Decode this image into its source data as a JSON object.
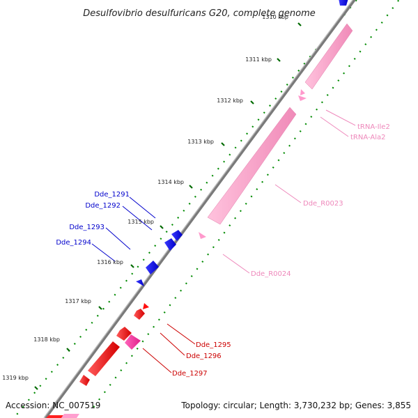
{
  "title": "Desulfovibrio desulfuricans G20, complete genome",
  "footer": {
    "accession": "Accession: NC_007519",
    "topology": "Topology: circular; Length: 3,730,232 bp; Genes: 3,855"
  },
  "colors": {
    "backbone": "#8a8a8a",
    "forward_gene": "#ff0000",
    "forward_gene_alt": "#ff33aa",
    "reverse_gene": "#0000ff",
    "rna": "#ff99cc",
    "tick_major": "#008000",
    "tick_minor": "#00aa00",
    "label_blue": "#0000cc",
    "label_red": "#cc0000",
    "label_pink": "#ee88bb"
  },
  "kbp_labels": [
    {
      "text": "1310 kbp"
    },
    {
      "text": "1311 kbp"
    },
    {
      "text": "1312 kbp"
    },
    {
      "text": "1313 kbp"
    },
    {
      "text": "1314 kbp"
    },
    {
      "text": "1315 kbp"
    },
    {
      "text": "1316 kbp"
    },
    {
      "text": "1317 kbp"
    },
    {
      "text": "1318 kbp"
    },
    {
      "text": "1319 kbp"
    }
  ],
  "gene_labels": [
    {
      "text": "Dde_1291",
      "color": "#0000cc"
    },
    {
      "text": "Dde_1292",
      "color": "#0000cc"
    },
    {
      "text": "Dde_1293",
      "color": "#0000cc"
    },
    {
      "text": "Dde_1294",
      "color": "#0000cc"
    },
    {
      "text": "tRNA-Ile2",
      "color": "#ee88bb"
    },
    {
      "text": "tRNA-Ala2",
      "color": "#ee88bb"
    },
    {
      "text": "Dde_R0023",
      "color": "#ee88bb"
    },
    {
      "text": "Dde_R0024",
      "color": "#ee88bb"
    },
    {
      "text": "Dde_1295",
      "color": "#cc0000"
    },
    {
      "text": "Dde_1296",
      "color": "#cc0000"
    },
    {
      "text": "Dde_1297",
      "color": "#cc0000"
    }
  ]
}
